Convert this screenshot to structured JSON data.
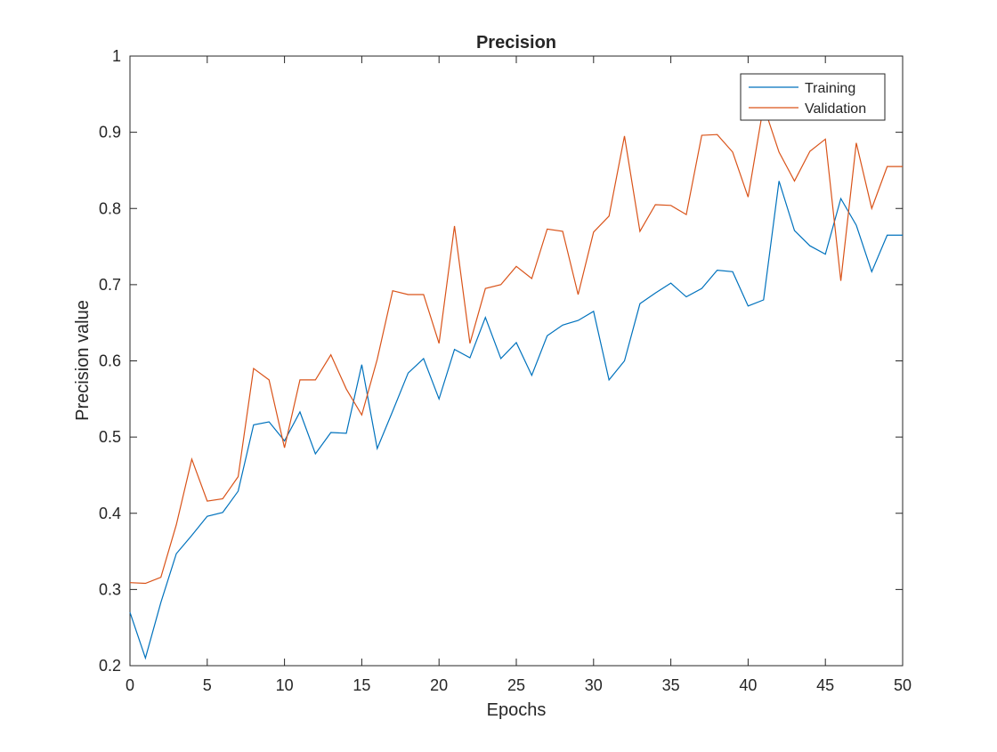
{
  "chart_data": {
    "type": "line",
    "title": "Precision",
    "xlabel": "Epochs",
    "ylabel": "Precision value",
    "xlim": [
      0,
      50
    ],
    "ylim": [
      0.2,
      1
    ],
    "xticks": [
      "0",
      "5",
      "10",
      "15",
      "20",
      "25",
      "30",
      "35",
      "40",
      "45",
      "50"
    ],
    "yticks": [
      "0.2",
      "0.3",
      "0.4",
      "0.5",
      "0.6",
      "0.7",
      "0.8",
      "0.9",
      "1"
    ],
    "grid": false,
    "legend_position": "top-right",
    "x": [
      0,
      1,
      2,
      3,
      4,
      5,
      6,
      7,
      8,
      9,
      10,
      11,
      12,
      13,
      14,
      15,
      16,
      17,
      18,
      19,
      20,
      21,
      22,
      23,
      24,
      25,
      26,
      27,
      28,
      29,
      30,
      31,
      32,
      33,
      34,
      35,
      36,
      37,
      38,
      39,
      40,
      41,
      42,
      43,
      44,
      45,
      46,
      47,
      48,
      49,
      50
    ],
    "series": [
      {
        "name": "Training",
        "color": "#0072BD",
        "values": [
          0.27,
          0.21,
          0.283,
          0.347,
          0.371,
          0.396,
          0.401,
          0.429,
          0.516,
          0.52,
          0.495,
          0.533,
          0.478,
          0.506,
          0.505,
          0.595,
          0.485,
          0.534,
          0.584,
          0.603,
          0.55,
          0.615,
          0.604,
          0.657,
          0.603,
          0.624,
          0.581,
          0.633,
          0.647,
          0.653,
          0.665,
          0.575,
          0.6,
          0.675,
          0.689,
          0.702,
          0.684,
          0.695,
          0.719,
          0.717,
          0.672,
          0.68,
          0.836,
          0.771,
          0.751,
          0.74,
          0.813,
          0.778,
          0.717,
          0.765,
          0.765
        ]
      },
      {
        "name": "Validation",
        "color": "#D95319",
        "values": [
          0.309,
          0.308,
          0.316,
          0.385,
          0.471,
          0.416,
          0.419,
          0.448,
          0.59,
          0.575,
          0.486,
          0.575,
          0.575,
          0.608,
          0.563,
          0.529,
          0.602,
          0.692,
          0.687,
          0.687,
          0.623,
          0.777,
          0.623,
          0.695,
          0.7,
          0.724,
          0.708,
          0.773,
          0.77,
          0.687,
          0.769,
          0.79,
          0.895,
          0.77,
          0.805,
          0.804,
          0.792,
          0.896,
          0.897,
          0.874,
          0.815,
          0.935,
          0.874,
          0.836,
          0.875,
          0.891,
          0.705,
          0.886,
          0.8,
          0.855,
          0.855
        ]
      }
    ]
  }
}
